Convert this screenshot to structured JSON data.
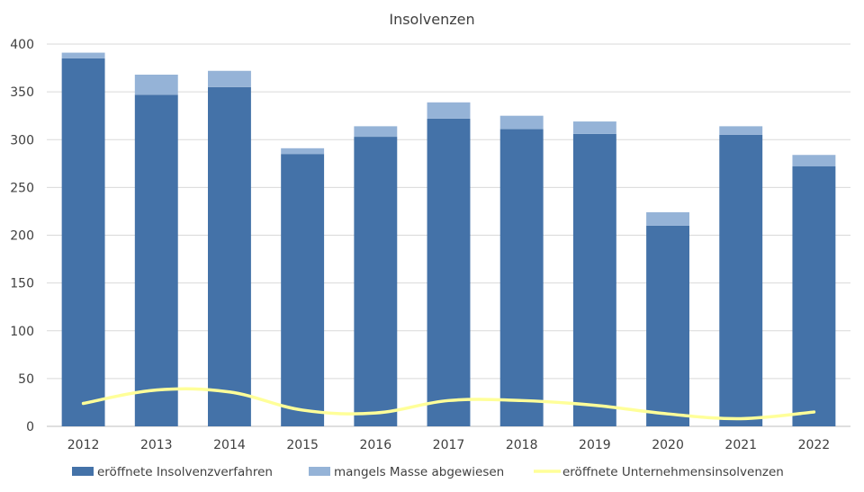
{
  "chart_data": {
    "type": "bar",
    "stacked": true,
    "title": "Insolvenzen",
    "xlabel": "",
    "ylabel": "",
    "ylim": [
      0,
      400
    ],
    "yticks": [
      0,
      50,
      100,
      150,
      200,
      250,
      300,
      350,
      400
    ],
    "grid": true,
    "legend_position": "bottom",
    "categories": [
      "2012",
      "2013",
      "2014",
      "2015",
      "2016",
      "2017",
      "2018",
      "2019",
      "2020",
      "2021",
      "2022"
    ],
    "series": [
      {
        "name": "eröffnete Insolvenzverfahren",
        "type": "bar",
        "color": "#4472a8",
        "values": [
          385,
          347,
          355,
          285,
          303,
          322,
          311,
          306,
          210,
          305,
          272
        ]
      },
      {
        "name": "mangels Masse abgewiesen",
        "type": "bar",
        "color": "#95b3d7",
        "values": [
          6,
          21,
          17,
          6,
          11,
          17,
          14,
          13,
          14,
          9,
          12
        ]
      },
      {
        "name": "eröffnete Unternehmensinsolvenzen",
        "type": "line",
        "color": "#ffff99",
        "values": [
          24,
          38,
          36,
          17,
          14,
          27,
          27,
          22,
          13,
          8,
          15
        ]
      }
    ]
  }
}
